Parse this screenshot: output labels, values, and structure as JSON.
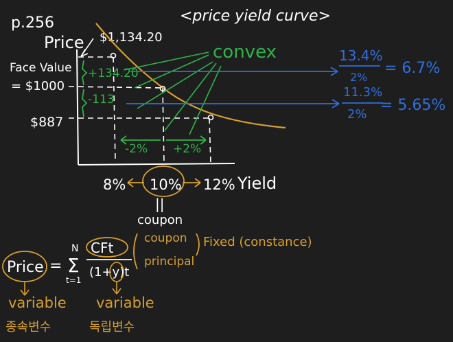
{
  "page_ref": "p.256",
  "title": "<price yield curve>",
  "axes": {
    "y_label": "Price",
    "x_label": "Yield"
  },
  "chart_data": {
    "type": "line",
    "title": "<price yield curve>",
    "xlabel": "Yield",
    "ylabel": "Price",
    "points": [
      {
        "yield_pct": 8,
        "price": 1134.2
      },
      {
        "yield_pct": 10,
        "price": 1000
      },
      {
        "yield_pct": 12,
        "price": 887
      }
    ],
    "shape": "convex"
  },
  "labels": {
    "price_high": "$1,134.20",
    "face_value_line1": "Face Value",
    "face_value_line2": "= $1000",
    "price_low": "$887",
    "delta_up": "+134.20",
    "delta_down": "-113",
    "convex": "convex",
    "yield_minus": "-2%",
    "yield_plus": "+2%",
    "yield_8": "8%",
    "yield_10": "10%",
    "yield_12": "12%",
    "coupon_equals": "||",
    "coupon": "coupon"
  },
  "calc": {
    "up_num": "13.4%",
    "up_den": "2%",
    "up_result": "= 6.7%",
    "down_num": "11.3%",
    "down_den": "2%",
    "down_result": "= 5.65%"
  },
  "formula": {
    "lhs": "Price",
    "equals": "=",
    "sum_top": "N",
    "sum_symbol": "Σ",
    "sum_bottom": "t=1",
    "numerator": "CFt",
    "denominator": "(1+y)t",
    "note_coupon": "coupon",
    "note_principal": "principal",
    "note_fixed": "Fixed (constance)",
    "var_left": "variable",
    "var_left_ko": "종속변수",
    "var_right": "variable",
    "var_right_ko": "독립변수"
  },
  "colors": {
    "background": "#1e1e1e",
    "ink_white": "#ffffff",
    "ink_green": "#2fb34a",
    "ink_blue": "#2f6fe0",
    "ink_orange": "#d8a02c"
  }
}
